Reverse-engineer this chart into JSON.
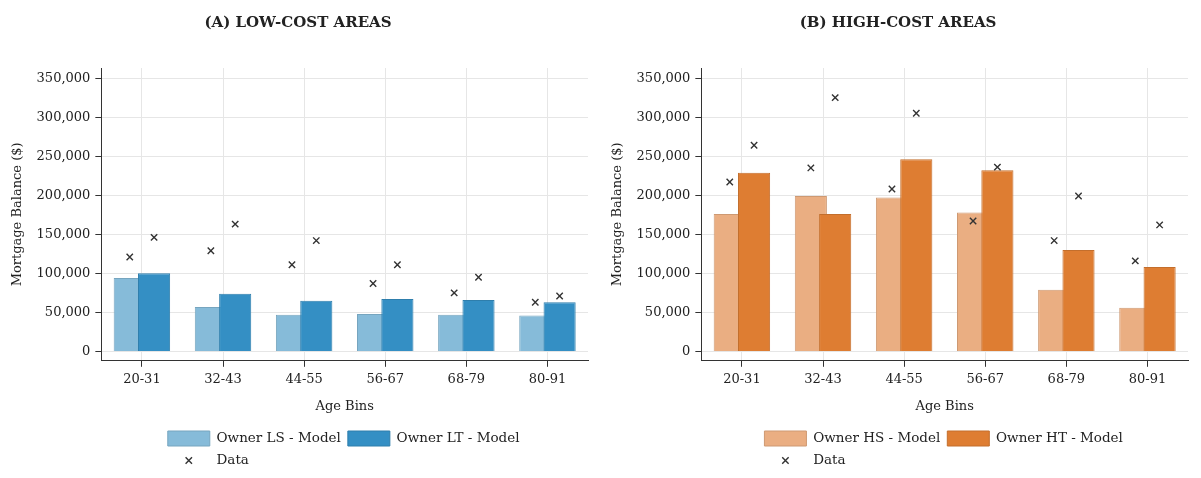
{
  "chart_data": [
    {
      "type": "bar",
      "title": "(A) LOW-COST AREAS",
      "xlabel": "Age Bins",
      "ylabel": "Mortgage Balance ($)",
      "categories": [
        "20-31",
        "32-43",
        "44-55",
        "56-67",
        "68-79",
        "80-91"
      ],
      "series": [
        {
          "name": "Owner LS - Model",
          "color": "#86bbd9",
          "values": [
            94000,
            57000,
            47000,
            48000,
            47000,
            46000
          ]
        },
        {
          "name": "Owner LT - Model",
          "color": "#348fc4",
          "values": [
            100000,
            74000,
            65000,
            67000,
            66000,
            63000
          ]
        },
        {
          "name": "Data",
          "type": "scatter",
          "marker": "cross",
          "color": "#333333",
          "x": [
            "20-31",
            "20-31",
            "32-43",
            "32-43",
            "44-55",
            "44-55",
            "56-67",
            "56-67",
            "68-79",
            "68-79",
            "80-91",
            "80-91"
          ],
          "values": [
            121000,
            146000,
            129000,
            163000,
            111000,
            142000,
            87000,
            111000,
            75000,
            95000,
            63000,
            71000
          ]
        }
      ],
      "ylim": [
        -12000,
        363000
      ],
      "yticks": [
        0,
        {
          "value": 50000,
          "label": "50,000"
        },
        {
          "value": 100000,
          "label": "100,000"
        },
        {
          "value": 150000,
          "label": "150,000"
        },
        {
          "value": 200000,
          "label": "200,000"
        },
        {
          "value": 250000,
          "label": "250,000"
        },
        {
          "value": 300000,
          "label": "300,000"
        },
        {
          "value": 350000,
          "label": "350,000"
        }
      ],
      "grid": true,
      "legend": "bottom"
    },
    {
      "type": "bar",
      "title": "(B) HIGH-COST AREAS",
      "xlabel": "Age Bins",
      "ylabel": "Mortgage Balance ($)",
      "categories": [
        "20-31",
        "32-43",
        "44-55",
        "56-67",
        "68-79",
        "80-91"
      ],
      "series": [
        {
          "name": "Owner HS - Model",
          "color": "#eaae82",
          "values": [
            176000,
            199000,
            197000,
            178000,
            79000,
            56000
          ]
        },
        {
          "name": "Owner HT - Model",
          "color": "#de7d32",
          "values": [
            229000,
            176000,
            246000,
            232000,
            130000,
            108000
          ]
        },
        {
          "name": "Data",
          "type": "scatter",
          "marker": "cross",
          "color": "#333333",
          "x": [
            "20-31",
            "20-31",
            "32-43",
            "32-43",
            "44-55",
            "44-55",
            "56-67",
            "56-67",
            "68-79",
            "68-79",
            "80-91",
            "80-91"
          ],
          "values": [
            217000,
            264000,
            235000,
            325000,
            208000,
            305000,
            167000,
            236000,
            142000,
            199000,
            116000,
            162000
          ]
        }
      ],
      "ylim": [
        -12000,
        363000
      ],
      "yticks": [
        0,
        {
          "value": 50000,
          "label": "50,000"
        },
        {
          "value": 100000,
          "label": "100,000"
        },
        {
          "value": 150000,
          "label": "150,000"
        },
        {
          "value": 200000,
          "label": "200,000"
        },
        {
          "value": 250000,
          "label": "250,000"
        },
        {
          "value": 300000,
          "label": "300,000"
        },
        {
          "value": 350000,
          "label": "350,000"
        }
      ],
      "grid": true,
      "legend": "bottom"
    }
  ]
}
